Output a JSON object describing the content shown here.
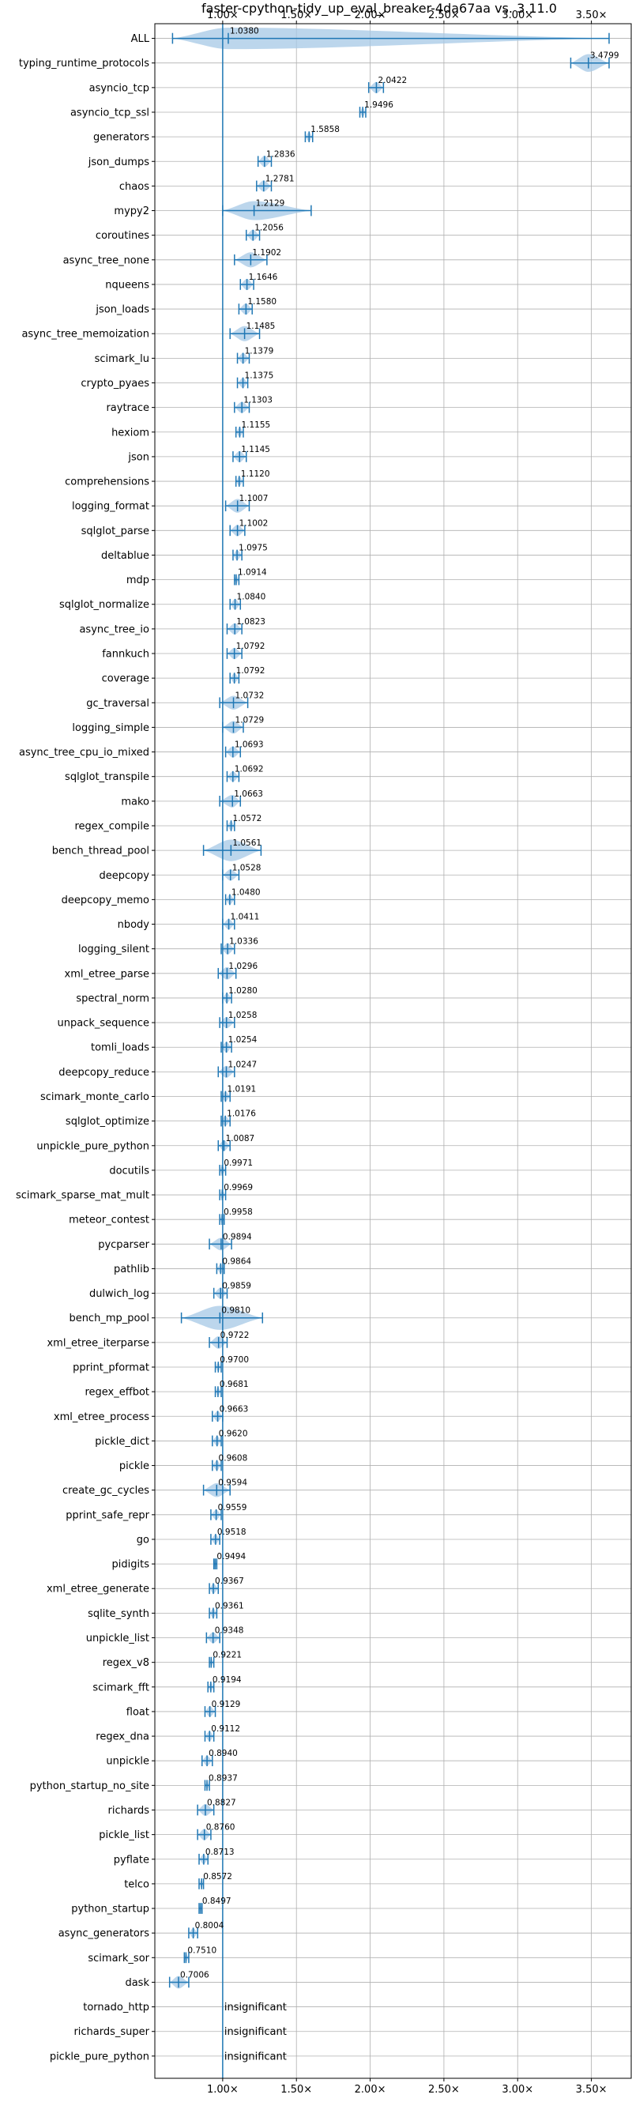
{
  "chart_data": {
    "type": "violin",
    "title": "faster-cpython-tidy_up_eval_breaker-4da67aa vs. 3.11.0",
    "xlim": [
      0.54,
      3.77
    ],
    "x_ticks": [
      1.0,
      1.5,
      2.0,
      2.5,
      3.0,
      3.5
    ],
    "x_tick_labels": [
      "1.00×",
      "1.50×",
      "2.00×",
      "2.50×",
      "3.00×",
      "3.50×"
    ],
    "grid": true,
    "reference_line": 1.0,
    "accent_color": "#1f77b4",
    "violin_color": "#a6c8e6",
    "benchmarks": [
      {
        "name": "ALL",
        "value": 1.038,
        "label": "1.0380",
        "min": 0.66,
        "max": 3.62,
        "spread": 0.12
      },
      {
        "name": "typing_runtime_protocols",
        "value": 3.4799,
        "label": "3.4799",
        "min": 3.36,
        "max": 3.62,
        "spread": 0.09
      },
      {
        "name": "asyncio_tcp",
        "value": 2.0422,
        "label": "2.0422",
        "min": 1.99,
        "max": 2.09,
        "spread": 0.04
      },
      {
        "name": "asyncio_tcp_ssl",
        "value": 1.9496,
        "label": "1.9496",
        "min": 1.93,
        "max": 1.97,
        "spread": 0.02
      },
      {
        "name": "generators",
        "value": 1.5858,
        "label": "1.5858",
        "min": 1.56,
        "max": 1.61,
        "spread": 0.025
      },
      {
        "name": "json_dumps",
        "value": 1.2836,
        "label": "1.2836",
        "min": 1.24,
        "max": 1.33,
        "spread": 0.04
      },
      {
        "name": "chaos",
        "value": 1.2781,
        "label": "1.2781",
        "min": 1.23,
        "max": 1.33,
        "spread": 0.04
      },
      {
        "name": "mypy2",
        "value": 1.2129,
        "label": "1.2129",
        "min": 1.0,
        "max": 1.6,
        "spread": 0.1
      },
      {
        "name": "coroutines",
        "value": 1.2056,
        "label": "1.2056",
        "min": 1.16,
        "max": 1.25,
        "spread": 0.04
      },
      {
        "name": "async_tree_none",
        "value": 1.1902,
        "label": "1.1902",
        "min": 1.08,
        "max": 1.3,
        "spread": 0.07
      },
      {
        "name": "nqueens",
        "value": 1.1646,
        "label": "1.1646",
        "min": 1.12,
        "max": 1.21,
        "spread": 0.04
      },
      {
        "name": "json_loads",
        "value": 1.158,
        "label": "1.1580",
        "min": 1.11,
        "max": 1.2,
        "spread": 0.04
      },
      {
        "name": "async_tree_memoization",
        "value": 1.1485,
        "label": "1.1485",
        "min": 1.05,
        "max": 1.25,
        "spread": 0.07
      },
      {
        "name": "scimark_lu",
        "value": 1.1379,
        "label": "1.1379",
        "min": 1.1,
        "max": 1.18,
        "spread": 0.035
      },
      {
        "name": "crypto_pyaes",
        "value": 1.1375,
        "label": "1.1375",
        "min": 1.1,
        "max": 1.17,
        "spread": 0.03
      },
      {
        "name": "raytrace",
        "value": 1.1303,
        "label": "1.1303",
        "min": 1.08,
        "max": 1.18,
        "spread": 0.04
      },
      {
        "name": "hexiom",
        "value": 1.1155,
        "label": "1.1155",
        "min": 1.09,
        "max": 1.14,
        "spread": 0.025
      },
      {
        "name": "json",
        "value": 1.1145,
        "label": "1.1145",
        "min": 1.07,
        "max": 1.16,
        "spread": 0.04
      },
      {
        "name": "comprehensions",
        "value": 1.112,
        "label": "1.1120",
        "min": 1.09,
        "max": 1.14,
        "spread": 0.025
      },
      {
        "name": "logging_format",
        "value": 1.1007,
        "label": "1.1007",
        "min": 1.02,
        "max": 1.18,
        "spread": 0.06
      },
      {
        "name": "sqlglot_parse",
        "value": 1.1002,
        "label": "1.1002",
        "min": 1.05,
        "max": 1.15,
        "spread": 0.04
      },
      {
        "name": "deltablue",
        "value": 1.0975,
        "label": "1.0975",
        "min": 1.07,
        "max": 1.13,
        "spread": 0.03
      },
      {
        "name": "mdp",
        "value": 1.0914,
        "label": "1.0914",
        "min": 1.08,
        "max": 1.11,
        "spread": 0.015
      },
      {
        "name": "sqlglot_normalize",
        "value": 1.084,
        "label": "1.0840",
        "min": 1.05,
        "max": 1.12,
        "spread": 0.035
      },
      {
        "name": "async_tree_io",
        "value": 1.0823,
        "label": "1.0823",
        "min": 1.03,
        "max": 1.13,
        "spread": 0.04
      },
      {
        "name": "fannkuch",
        "value": 1.0792,
        "label": "1.0792",
        "min": 1.03,
        "max": 1.13,
        "spread": 0.04
      },
      {
        "name": "coverage",
        "value": 1.0792,
        "label": "1.0792",
        "min": 1.05,
        "max": 1.11,
        "spread": 0.03
      },
      {
        "name": "gc_traversal",
        "value": 1.0732,
        "label": "1.0732",
        "min": 0.98,
        "max": 1.17,
        "spread": 0.06
      },
      {
        "name": "logging_simple",
        "value": 1.0729,
        "label": "1.0729",
        "min": 1.0,
        "max": 1.14,
        "spread": 0.05
      },
      {
        "name": "async_tree_cpu_io_mixed",
        "value": 1.0693,
        "label": "1.0693",
        "min": 1.02,
        "max": 1.12,
        "spread": 0.04
      },
      {
        "name": "sqlglot_transpile",
        "value": 1.0692,
        "label": "1.0692",
        "min": 1.03,
        "max": 1.11,
        "spread": 0.035
      },
      {
        "name": "mako",
        "value": 1.0663,
        "label": "1.0663",
        "min": 0.98,
        "max": 1.12,
        "spread": 0.05
      },
      {
        "name": "regex_compile",
        "value": 1.0572,
        "label": "1.0572",
        "min": 1.03,
        "max": 1.08,
        "spread": 0.025
      },
      {
        "name": "bench_thread_pool",
        "value": 1.0561,
        "label": "1.0561",
        "min": 0.87,
        "max": 1.26,
        "spread": 0.12
      },
      {
        "name": "deepcopy",
        "value": 1.0528,
        "label": "1.0528",
        "min": 1.0,
        "max": 1.11,
        "spread": 0.04
      },
      {
        "name": "deepcopy_memo",
        "value": 1.048,
        "label": "1.0480",
        "min": 1.02,
        "max": 1.08,
        "spread": 0.03
      },
      {
        "name": "nbody",
        "value": 1.0411,
        "label": "1.0411",
        "min": 1.0,
        "max": 1.08,
        "spread": 0.035
      },
      {
        "name": "logging_silent",
        "value": 1.0336,
        "label": "1.0336",
        "min": 0.99,
        "max": 1.08,
        "spread": 0.04
      },
      {
        "name": "xml_etree_parse",
        "value": 1.0296,
        "label": "1.0296",
        "min": 0.97,
        "max": 1.09,
        "spread": 0.05
      },
      {
        "name": "spectral_norm",
        "value": 1.028,
        "label": "1.0280",
        "min": 1.0,
        "max": 1.06,
        "spread": 0.03
      },
      {
        "name": "unpack_sequence",
        "value": 1.0258,
        "label": "1.0258",
        "min": 0.98,
        "max": 1.08,
        "spread": 0.04
      },
      {
        "name": "tomli_loads",
        "value": 1.0254,
        "label": "1.0254",
        "min": 0.99,
        "max": 1.06,
        "spread": 0.035
      },
      {
        "name": "deepcopy_reduce",
        "value": 1.0247,
        "label": "1.0247",
        "min": 0.97,
        "max": 1.08,
        "spread": 0.045
      },
      {
        "name": "scimark_monte_carlo",
        "value": 1.0191,
        "label": "1.0191",
        "min": 0.99,
        "max": 1.05,
        "spread": 0.03
      },
      {
        "name": "sqlglot_optimize",
        "value": 1.0176,
        "label": "1.0176",
        "min": 0.99,
        "max": 1.05,
        "spread": 0.03
      },
      {
        "name": "unpickle_pure_python",
        "value": 1.0087,
        "label": "1.0087",
        "min": 0.97,
        "max": 1.05,
        "spread": 0.035
      },
      {
        "name": "docutils",
        "value": 0.9971,
        "label": "0.9971",
        "min": 0.98,
        "max": 1.02,
        "spread": 0.02
      },
      {
        "name": "scimark_sparse_mat_mult",
        "value": 0.9969,
        "label": "0.9969",
        "min": 0.98,
        "max": 1.02,
        "spread": 0.02
      },
      {
        "name": "meteor_contest",
        "value": 0.9958,
        "label": "0.9958",
        "min": 0.98,
        "max": 1.01,
        "spread": 0.015
      },
      {
        "name": "pycparser",
        "value": 0.9894,
        "label": "0.9894",
        "min": 0.91,
        "max": 1.06,
        "spread": 0.05
      },
      {
        "name": "pathlib",
        "value": 0.9864,
        "label": "0.9864",
        "min": 0.96,
        "max": 1.01,
        "spread": 0.025
      },
      {
        "name": "dulwich_log",
        "value": 0.9859,
        "label": "0.9859",
        "min": 0.94,
        "max": 1.03,
        "spread": 0.04
      },
      {
        "name": "bench_mp_pool",
        "value": 0.981,
        "label": "0.9810",
        "min": 0.72,
        "max": 1.27,
        "spread": 0.14
      },
      {
        "name": "xml_etree_iterparse",
        "value": 0.9722,
        "label": "0.9722",
        "min": 0.91,
        "max": 1.03,
        "spread": 0.05
      },
      {
        "name": "pprint_pformat",
        "value": 0.97,
        "label": "0.9700",
        "min": 0.95,
        "max": 0.99,
        "spread": 0.02
      },
      {
        "name": "regex_effbot",
        "value": 0.9681,
        "label": "0.9681",
        "min": 0.95,
        "max": 0.99,
        "spread": 0.02
      },
      {
        "name": "xml_etree_process",
        "value": 0.9663,
        "label": "0.9663",
        "min": 0.93,
        "max": 1.0,
        "spread": 0.035
      },
      {
        "name": "pickle_dict",
        "value": 0.962,
        "label": "0.9620",
        "min": 0.93,
        "max": 0.99,
        "spread": 0.03
      },
      {
        "name": "pickle",
        "value": 0.9608,
        "label": "0.9608",
        "min": 0.93,
        "max": 0.99,
        "spread": 0.03
      },
      {
        "name": "create_gc_cycles",
        "value": 0.9594,
        "label": "0.9594",
        "min": 0.87,
        "max": 1.05,
        "spread": 0.06
      },
      {
        "name": "pprint_safe_repr",
        "value": 0.9559,
        "label": "0.9559",
        "min": 0.92,
        "max": 0.99,
        "spread": 0.03
      },
      {
        "name": "go",
        "value": 0.9518,
        "label": "0.9518",
        "min": 0.92,
        "max": 0.98,
        "spread": 0.03
      },
      {
        "name": "pidigits",
        "value": 0.9494,
        "label": "0.9494",
        "min": 0.94,
        "max": 0.96,
        "spread": 0.012
      },
      {
        "name": "xml_etree_generate",
        "value": 0.9367,
        "label": "0.9367",
        "min": 0.91,
        "max": 0.97,
        "spread": 0.03
      },
      {
        "name": "sqlite_synth",
        "value": 0.9361,
        "label": "0.9361",
        "min": 0.91,
        "max": 0.96,
        "spread": 0.025
      },
      {
        "name": "unpickle_list",
        "value": 0.9348,
        "label": "0.9348",
        "min": 0.89,
        "max": 0.98,
        "spread": 0.04
      },
      {
        "name": "regex_v8",
        "value": 0.9221,
        "label": "0.9221",
        "min": 0.91,
        "max": 0.94,
        "spread": 0.015
      },
      {
        "name": "scimark_fft",
        "value": 0.9194,
        "label": "0.9194",
        "min": 0.9,
        "max": 0.94,
        "spread": 0.02
      },
      {
        "name": "float",
        "value": 0.9129,
        "label": "0.9129",
        "min": 0.88,
        "max": 0.95,
        "spread": 0.035
      },
      {
        "name": "regex_dna",
        "value": 0.9112,
        "label": "0.9112",
        "min": 0.88,
        "max": 0.94,
        "spread": 0.03
      },
      {
        "name": "unpickle",
        "value": 0.894,
        "label": "0.8940",
        "min": 0.86,
        "max": 0.93,
        "spread": 0.03
      },
      {
        "name": "python_startup_no_site",
        "value": 0.8937,
        "label": "0.8937",
        "min": 0.88,
        "max": 0.91,
        "spread": 0.015
      },
      {
        "name": "richards",
        "value": 0.8827,
        "label": "0.8827",
        "min": 0.83,
        "max": 0.94,
        "spread": 0.045
      },
      {
        "name": "pickle_list",
        "value": 0.876,
        "label": "0.8760",
        "min": 0.83,
        "max": 0.92,
        "spread": 0.04
      },
      {
        "name": "pyflate",
        "value": 0.8713,
        "label": "0.8713",
        "min": 0.84,
        "max": 0.9,
        "spread": 0.03
      },
      {
        "name": "telco",
        "value": 0.8572,
        "label": "0.8572",
        "min": 0.84,
        "max": 0.87,
        "spread": 0.015
      },
      {
        "name": "python_startup",
        "value": 0.8497,
        "label": "0.8497",
        "min": 0.84,
        "max": 0.86,
        "spread": 0.012
      },
      {
        "name": "async_generators",
        "value": 0.8004,
        "label": "0.8004",
        "min": 0.77,
        "max": 0.83,
        "spread": 0.03
      },
      {
        "name": "scimark_sor",
        "value": 0.751,
        "label": "0.7510",
        "min": 0.74,
        "max": 0.77,
        "spread": 0.015
      },
      {
        "name": "dask",
        "value": 0.7006,
        "label": "0.7006",
        "min": 0.64,
        "max": 0.77,
        "spread": 0.05
      },
      {
        "name": "tornado_http",
        "value": null,
        "label": "insignificant"
      },
      {
        "name": "richards_super",
        "value": null,
        "label": "insignificant"
      },
      {
        "name": "pickle_pure_python",
        "value": null,
        "label": "insignificant"
      }
    ]
  }
}
